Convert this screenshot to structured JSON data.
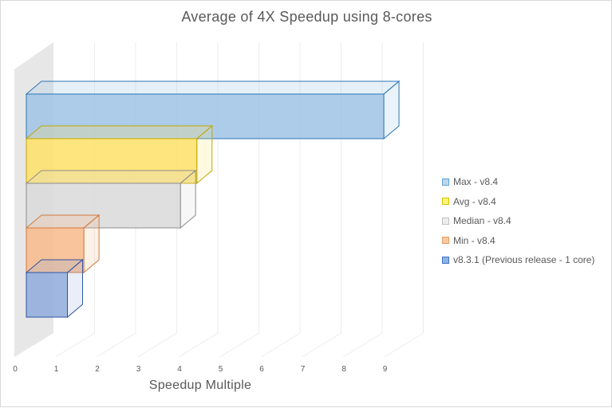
{
  "chart_data": {
    "type": "bar",
    "orientation": "horizontal",
    "style": "3d-clustered",
    "title": "Average of 4X Speedup using 8-cores",
    "xlabel": "Speedup Multiple",
    "ylabel": "",
    "xlim": [
      0,
      9
    ],
    "x_ticks": [
      "0",
      "1",
      "2",
      "3",
      "4",
      "5",
      "6",
      "7",
      "8",
      "9"
    ],
    "grid": true,
    "legend_position": "right",
    "series": [
      {
        "name": "Max - v8.4",
        "value": 8.7,
        "color": "#9dc3e6",
        "edge": "#2e75b6",
        "swatch_fill": "#bdd7ee",
        "swatch_edge": "#5ba3d9"
      },
      {
        "name": "Avg - v8.4",
        "value": 4.15,
        "color": "#ffe066",
        "edge": "#c5a600",
        "swatch_fill": "#fff27a",
        "swatch_edge": "#d6c200"
      },
      {
        "name": "Median - v8.4",
        "value": 3.75,
        "color": "#d9d9d9",
        "edge": "#8c8c8c",
        "swatch_fill": "#eeeeee",
        "swatch_edge": "#bfbfbf"
      },
      {
        "name": "Min - v8.4",
        "value": 1.4,
        "color": "#f8b98a",
        "edge": "#d07a3c",
        "swatch_fill": "#fbc9a2",
        "swatch_edge": "#e39a63"
      },
      {
        "name": "v8.3.1 (Previous release - 1 core)",
        "value": 1.0,
        "color": "#8faadc",
        "edge": "#2f55a4",
        "swatch_fill": "#8db4e2",
        "swatch_edge": "#4472c4"
      }
    ]
  }
}
